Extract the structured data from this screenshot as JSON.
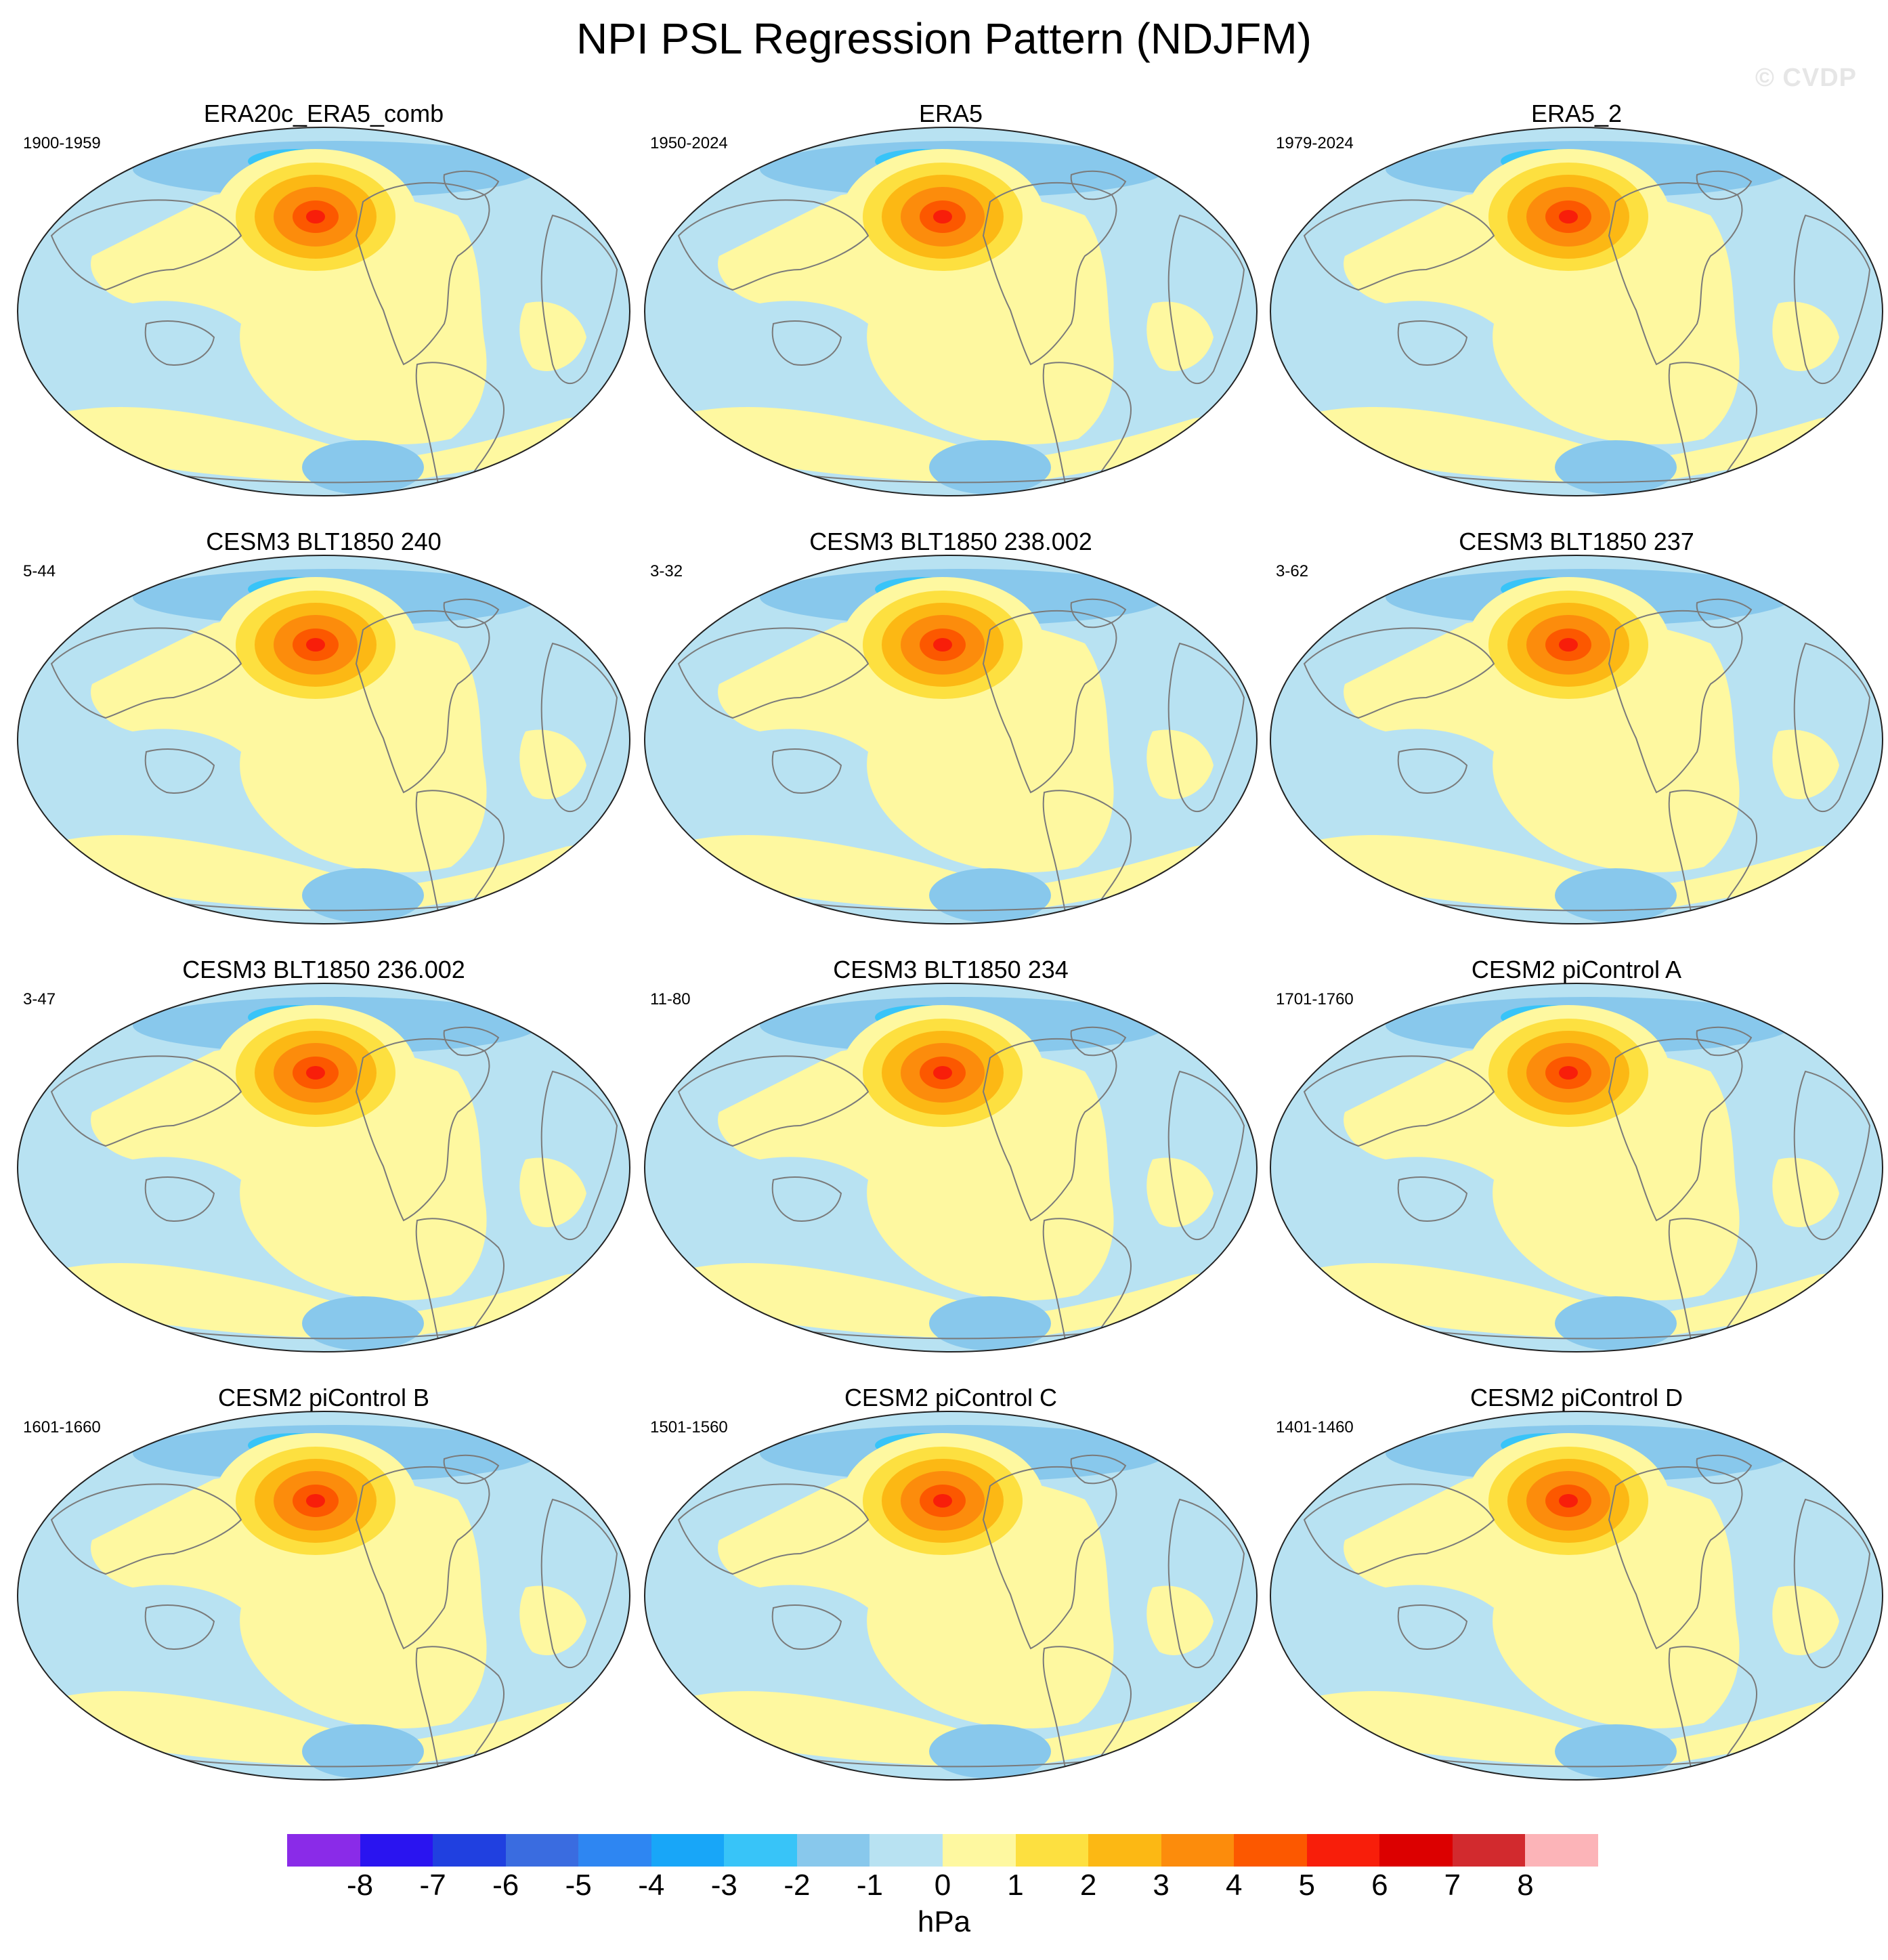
{
  "title": "NPI PSL Regression Pattern (NDJFM)",
  "watermark": "© CVDP",
  "units": "hPa",
  "colorbar": {
    "labels": [
      "-8",
      "-7",
      "-6",
      "-5",
      "-4",
      "-3",
      "-2",
      "-1",
      "0",
      "1",
      "2",
      "3",
      "4",
      "5",
      "6",
      "7",
      "8"
    ],
    "colors": [
      "#8a2be8",
      "#2a14f0",
      "#2040e0",
      "#3a6ce0",
      "#2e86f2",
      "#18a6f8",
      "#38c4f8",
      "#88c8ec",
      "#b8e2f2",
      "#fef8a0",
      "#fde040",
      "#fcb814",
      "#fc8c0c",
      "#fc5800",
      "#f81e0a",
      "#dc0000",
      "#d22a2e",
      "#fcb4b8"
    ]
  },
  "panels": [
    {
      "title": "ERA20c_ERA5_comb",
      "years": "1900-1959"
    },
    {
      "title": "ERA5",
      "years": "1950-2024"
    },
    {
      "title": "ERA5_2",
      "years": "1979-2024"
    },
    {
      "title": "CESM3 BLT1850 240",
      "years": "5-44"
    },
    {
      "title": "CESM3 BLT1850 238.002",
      "years": "3-32"
    },
    {
      "title": "CESM3 BLT1850 237",
      "years": "3-62"
    },
    {
      "title": "CESM3 BLT1850 236.002",
      "years": "3-47"
    },
    {
      "title": "CESM3 BLT1850 234",
      "years": "11-80"
    },
    {
      "title": "CESM2 piControl A",
      "years": "1701-1760"
    },
    {
      "title": "CESM2 piControl B",
      "years": "1601-1660"
    },
    {
      "title": "CESM2 piControl C",
      "years": "1501-1560"
    },
    {
      "title": "CESM2 piControl D",
      "years": "1401-1460"
    }
  ]
}
